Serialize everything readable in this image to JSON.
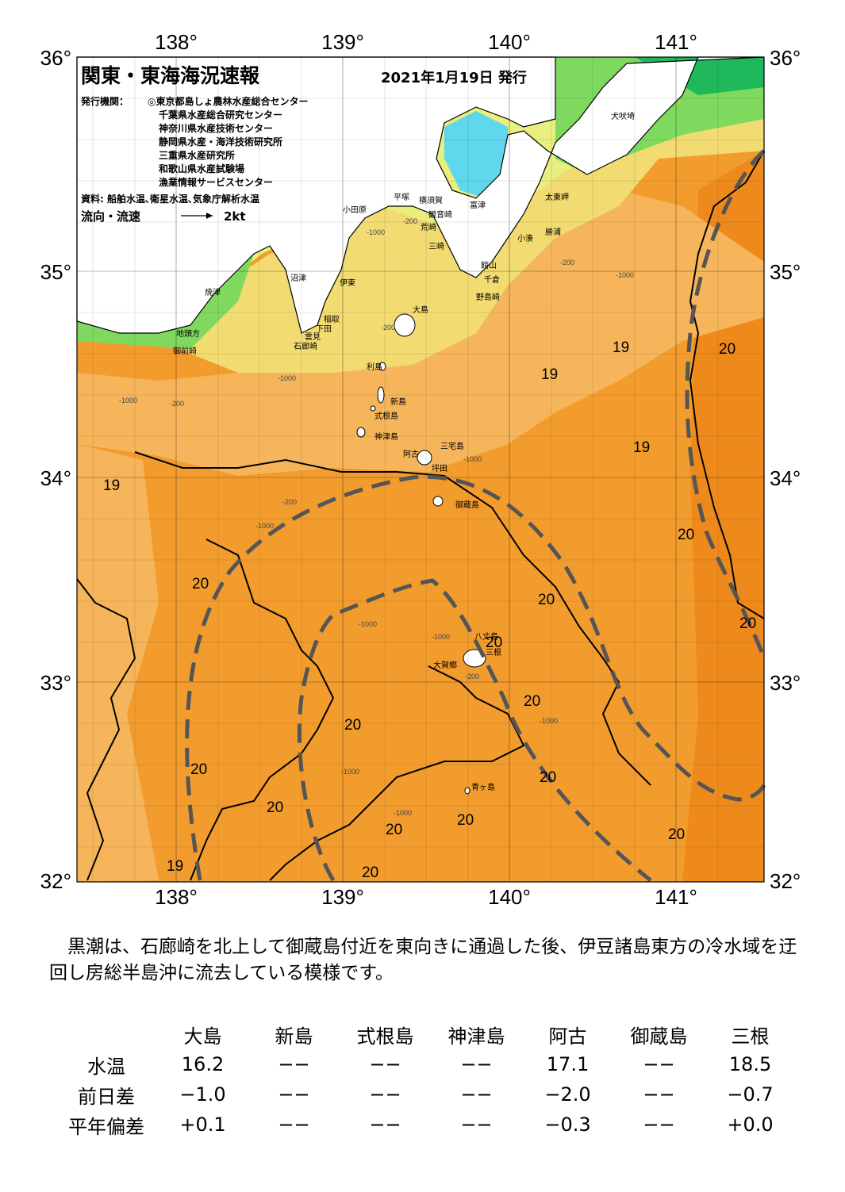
{
  "title": "関東・東海海況速報",
  "date": "2021年1月19日 発行",
  "issuers_label": "発行機関：",
  "issuers": [
    "◎東京都島しょ農林水産総合センター",
    "千葉県水産総合研究センター",
    "神奈川県水産技術センター",
    "静岡県水産・海洋技術研究所",
    "三重県水産研究所",
    "和歌山県水産試験場",
    "漁業情報サービスセンター"
  ],
  "sources": "資料: 船舶水温､衛星水温､気象庁解析水温",
  "flow_label": "流向・流速",
  "flow_scale": "2kt",
  "lon_labels": [
    "138°",
    "139°",
    "140°",
    "141°"
  ],
  "lat_labels": [
    "36°",
    "35°",
    "34°",
    "33°",
    "32°"
  ],
  "places": [
    "犬吠埼",
    "太東岬",
    "勝浦",
    "小湊",
    "館山",
    "千倉",
    "野島崎",
    "富津",
    "観音崎",
    "横須賀",
    "平塚",
    "荒崎",
    "三崎",
    "小田原",
    "沼津",
    "伊東",
    "焼津",
    "稲取",
    "下田",
    "雲見",
    "石廊崎",
    "地頭方",
    "御前崎",
    "大島",
    "利島",
    "新島",
    "式根島",
    "神津島",
    "三宅島",
    "阿古",
    "坪田",
    "御蔵島",
    "八丈島",
    "三根",
    "大賀郷",
    "青ヶ島"
  ],
  "isotherm_labels": [
    "19",
    "19",
    "20",
    "19",
    "19",
    "20",
    "20",
    "20",
    "20",
    "20",
    "20",
    "20",
    "20",
    "20",
    "20",
    "20",
    "20",
    "20",
    "19",
    "20"
  ],
  "depth_labels": [
    "-200",
    "-1000"
  ],
  "summary": "　黒潮は、石廊崎を北上して御蔵島付近を東向きに通過した後、伊豆諸島東方の冷水域を迂回し房総半島沖に流去している模様です。",
  "table": {
    "columns": [
      "大島",
      "新島",
      "式根島",
      "神津島",
      "阿古",
      "御蔵島",
      "三根"
    ],
    "rows": [
      {
        "label": "水温",
        "values": [
          "16.2",
          "−−",
          "−−",
          "−−",
          "17.1",
          "−−",
          "18.5"
        ]
      },
      {
        "label": "前日差",
        "values": [
          "−1.0",
          "−−",
          "−−",
          "−−",
          "−2.0",
          "−−",
          "−0.7"
        ]
      },
      {
        "label": "平年偏差",
        "values": [
          "+0.1",
          "−−",
          "−−",
          "−−",
          "−0.3",
          "−−",
          "+0.0"
        ]
      }
    ]
  },
  "colors": {
    "warm": "#f39c2e",
    "warm_dark": "#ee8a1c",
    "mid": "#f6b55a",
    "cool": "#f2dc72",
    "cooler": "#e8ef7e",
    "green": "#7fd95f",
    "deep_green": "#1fb85a",
    "cyan": "#5fd8ee",
    "land": "#ffffff",
    "kuroshio": "#555555"
  }
}
